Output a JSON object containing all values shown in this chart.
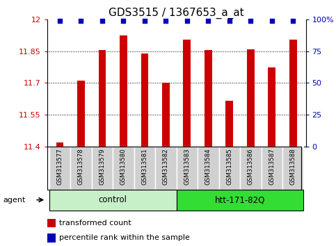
{
  "title": "GDS3515 / 1367653_a_at",
  "samples": [
    "GSM313577",
    "GSM313578",
    "GSM313579",
    "GSM313580",
    "GSM313581",
    "GSM313582",
    "GSM313583",
    "GSM313584",
    "GSM313585",
    "GSM313586",
    "GSM313587",
    "GSM313588"
  ],
  "bar_values": [
    11.42,
    11.71,
    11.855,
    11.925,
    11.84,
    11.7,
    11.905,
    11.855,
    11.615,
    11.86,
    11.775,
    11.905
  ],
  "percentile_values": [
    99,
    99,
    99,
    99,
    99,
    99,
    99,
    99,
    99,
    99,
    99,
    99
  ],
  "bar_baseline": 11.4,
  "ylim_left": [
    11.4,
    12.0
  ],
  "ylim_right": [
    0,
    100
  ],
  "yticks_left": [
    11.4,
    11.55,
    11.7,
    11.85,
    12.0
  ],
  "yticks_right": [
    0,
    25,
    50,
    75,
    100
  ],
  "ytick_labels_left": [
    "11.4",
    "11.55",
    "11.7",
    "11.85",
    "12"
  ],
  "ytick_labels_right": [
    "0",
    "25",
    "50",
    "75",
    "100%"
  ],
  "bar_color": "#cc0000",
  "dot_color": "#0000bb",
  "groups": [
    {
      "label": "control",
      "start": 0,
      "end": 5,
      "color": "#c8f0c8"
    },
    {
      "label": "htt-171-82Q",
      "start": 6,
      "end": 11,
      "color": "#33dd33"
    }
  ],
  "agent_label": "agent",
  "legend_bar_label": "transformed count",
  "legend_dot_label": "percentile rank within the sample",
  "tick_area_color": "#d0d0d0",
  "title_fontsize": 11,
  "tick_fontsize": 8,
  "sample_fontsize": 6.2,
  "group_fontsize": 8.5,
  "legend_fontsize": 8,
  "bar_width": 0.35
}
